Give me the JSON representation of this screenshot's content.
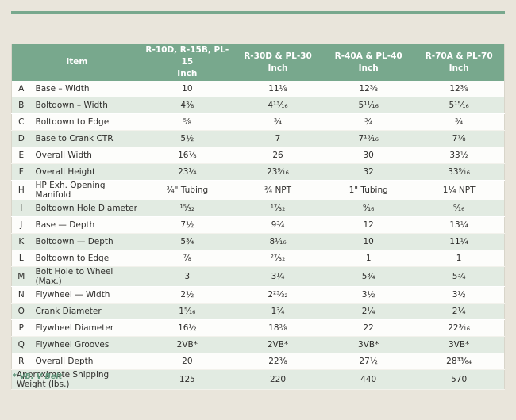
{
  "page": {
    "background_color": "#e9e5db",
    "accent_rule_color": "#78a88d"
  },
  "table": {
    "header": {
      "item_label": "Item",
      "background_color": "#78a88d",
      "text_color": "#ffffff",
      "columns": [
        {
          "model": "R-10D, R-15B, PL-15",
          "unit": "Inch"
        },
        {
          "model": "R-30D & PL-30",
          "unit": "Inch"
        },
        {
          "model": "R-40A & PL-40",
          "unit": "Inch"
        },
        {
          "model": "R-70A & PL-70",
          "unit": "Inch"
        }
      ]
    },
    "row_alt_color": "#e2ebe2",
    "rows": [
      {
        "letter": "A",
        "item": "Base – Width",
        "values": [
          "10",
          "11⅛",
          "12⅜",
          "12⅜"
        ]
      },
      {
        "letter": "B",
        "item": "Boltdown – Width",
        "values": [
          "4⅜",
          "4¹³⁄₁₆",
          "5¹¹⁄₁₆",
          "5¹⁵⁄₁₆"
        ]
      },
      {
        "letter": "C",
        "item": "Boltdown to Edge",
        "values": [
          "⅝",
          "¾",
          "¾",
          "¾"
        ]
      },
      {
        "letter": "D",
        "item": "Base to Crank CTR",
        "values": [
          "5½",
          "7",
          "7¹⁵⁄₁₆",
          "7⅞"
        ]
      },
      {
        "letter": "E",
        "item": "Overall Width",
        "values": [
          "16⅞",
          "26",
          "30",
          "33½"
        ]
      },
      {
        "letter": "F",
        "item": "Overall Height",
        "values": [
          "23¼",
          "23⁹⁄₁₆",
          "32",
          "33⁹⁄₁₆"
        ]
      },
      {
        "letter": "H",
        "item": "HP Exh. Opening Manifold",
        "values": [
          "¾\" Tubing",
          "¾ NPT",
          "1\" Tubing",
          "1¼ NPT"
        ]
      },
      {
        "letter": "I",
        "item": "Boltdown Hole Diameter",
        "values": [
          "¹⁵⁄₃₂",
          "¹⁷⁄₃₂",
          "⁹⁄₁₆",
          "⁹⁄₁₆"
        ]
      },
      {
        "letter": "J",
        "item": "Base — Depth",
        "values": [
          "7½",
          "9¾",
          "12",
          "13¼"
        ]
      },
      {
        "letter": "K",
        "item": "Boltdown — Depth",
        "values": [
          "5¾",
          "8¹⁄₁₆",
          "10",
          "11¼"
        ]
      },
      {
        "letter": "L",
        "item": "Boltdown to Edge",
        "values": [
          "⅞",
          "²⁷⁄₃₂",
          "1",
          "1"
        ]
      },
      {
        "letter": "M",
        "item": "Bolt Hole to Wheel (Max.)",
        "values": [
          "3",
          "3¼",
          "5¾",
          "5¾"
        ]
      },
      {
        "letter": "N",
        "item": "Flywheel — Width",
        "values": [
          "2½",
          "2²³⁄₃₂",
          "3½",
          "3½"
        ]
      },
      {
        "letter": "O",
        "item": "Crank Diameter",
        "values": [
          "1⁵⁄₁₆",
          "1¾",
          "2¼",
          "2¼"
        ]
      },
      {
        "letter": "P",
        "item": "Flywheel Diameter",
        "values": [
          "16½",
          "18⅜",
          "22",
          "22³⁄₁₆"
        ]
      },
      {
        "letter": "Q",
        "item": "Flywheel Grooves",
        "values": [
          "2VB*",
          "2VB*",
          "3VB*",
          "3VB*"
        ]
      },
      {
        "letter": "R",
        "item": "Overall Depth",
        "values": [
          "20",
          "22⅜",
          "27½",
          "28³³⁄₆₄"
        ]
      }
    ],
    "footer_row": {
      "label": "Approximate Shipping Weight (lbs.)",
      "values": [
        "125",
        "220",
        "440",
        "570"
      ]
    }
  },
  "footnote": "* VB: V Belt"
}
